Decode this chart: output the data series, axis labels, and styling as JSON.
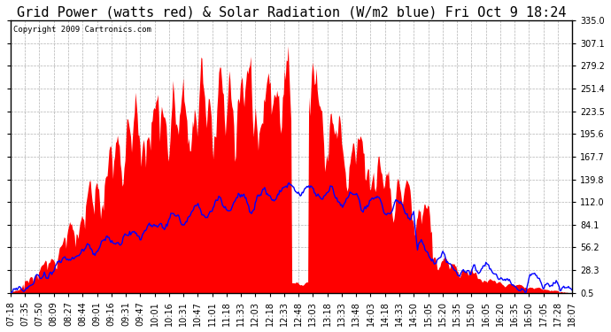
{
  "title": "Grid Power (watts red) & Solar Radiation (W/m2 blue) Fri Oct 9 18:24",
  "copyright": "Copyright 2009 Cartronics.com",
  "yticks": [
    0.5,
    28.3,
    56.2,
    84.1,
    112.0,
    139.8,
    167.7,
    195.6,
    223.5,
    251.4,
    279.2,
    307.1,
    335.0
  ],
  "ylim": [
    0.0,
    335.0
  ],
  "xtick_labels": [
    "07:18",
    "07:35",
    "07:50",
    "08:09",
    "08:27",
    "08:44",
    "09:01",
    "09:16",
    "09:31",
    "09:47",
    "10:01",
    "10:16",
    "10:31",
    "10:47",
    "11:01",
    "11:18",
    "11:33",
    "12:03",
    "12:18",
    "12:33",
    "12:48",
    "13:03",
    "13:18",
    "13:33",
    "13:48",
    "14:03",
    "14:18",
    "14:33",
    "14:50",
    "15:05",
    "15:20",
    "15:35",
    "15:50",
    "16:05",
    "16:20",
    "16:35",
    "16:50",
    "17:05",
    "17:28",
    "18:07"
  ],
  "background_color": "#ffffff",
  "plot_bg_color": "#ffffff",
  "grid_color": "#aaaaaa",
  "red_color": "#ff0000",
  "blue_color": "#0000ff",
  "title_fontsize": 11,
  "tick_fontsize": 7
}
